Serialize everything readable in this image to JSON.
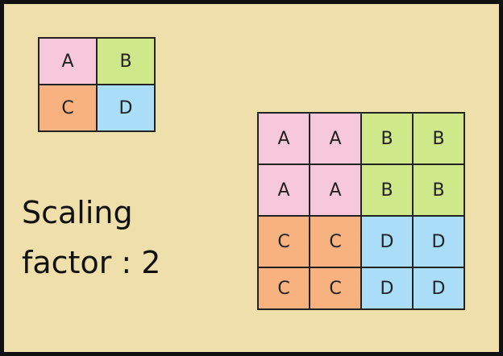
{
  "colors": {
    "background": "#efdfaa",
    "A": "#f7c8dc",
    "B": "#cfe88a",
    "C": "#f8b27f",
    "D": "#a9ddf8"
  },
  "original_grid": [
    [
      "A",
      "B"
    ],
    [
      "C",
      "D"
    ]
  ],
  "scaled_grid": [
    [
      "A",
      "A",
      "B",
      "B"
    ],
    [
      "A",
      "A",
      "B",
      "B"
    ],
    [
      "C",
      "C",
      "D",
      "D"
    ],
    [
      "C",
      "C",
      "D",
      "D"
    ]
  ],
  "caption": {
    "line1": "Scaling",
    "line2": "factor : 2"
  }
}
